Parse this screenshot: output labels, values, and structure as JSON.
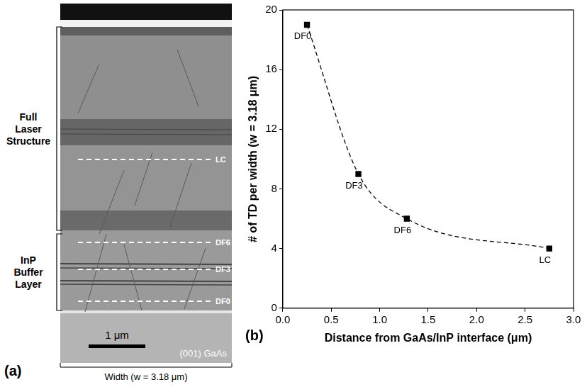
{
  "panel_letters": [
    "(a)",
    "(b)"
  ],
  "micrograph": {
    "brackets": [
      "Full Laser Structure",
      "InP Buffer Layer"
    ],
    "markers": [
      "LC",
      "DF6",
      "DF3",
      "DF0"
    ],
    "scale_bar": "1 μm",
    "substrate": "(001) GaAs",
    "width_label": "Width (w = 3.18 μm)"
  },
  "chart_data": {
    "type": "scatter",
    "x": [
      0.25,
      0.78,
      1.28,
      2.75
    ],
    "values": [
      19,
      9,
      6,
      4
    ],
    "point_labels": [
      "DF0",
      "DF3",
      "DF6",
      "LC"
    ],
    "x_label": "Distance from GaAs/InP interface (μm)",
    "y_label": "# of TD per width (w = 3.18 μm)",
    "xlim": [
      0,
      3
    ],
    "ylim": [
      0,
      20
    ],
    "xticks": [
      {
        "value": 0,
        "label": "0.0"
      },
      {
        "value": 0.5,
        "label": "0.5"
      },
      {
        "value": 1,
        "label": "1.0"
      },
      {
        "value": 1.5,
        "label": "1.5"
      },
      {
        "value": 2,
        "label": "2.0"
      },
      {
        "value": 2.5,
        "label": "2.5"
      },
      {
        "value": 3,
        "label": "3.0"
      }
    ],
    "yticks": [
      0,
      4,
      8,
      12,
      16,
      20
    ],
    "color": "#000000",
    "marker": "square",
    "line_style": "dashed",
    "grid": false
  }
}
